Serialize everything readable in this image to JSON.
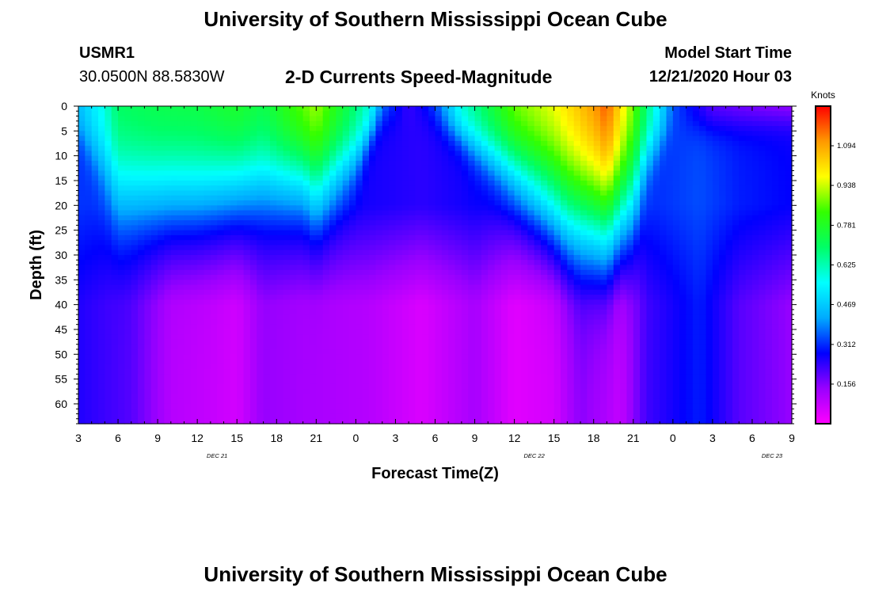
{
  "header": {
    "title": "University of Southern Mississippi Ocean Cube",
    "station_id": "USMR1",
    "station_coords": "30.0500N 88.5830W",
    "chart_title": "2-D Currents Speed-Magnitude",
    "model_start_label": "Model Start Time",
    "model_start_value": "12/21/2020 Hour 03"
  },
  "footer": {
    "title": "University of Southern Mississippi Ocean Cube"
  },
  "chart_data": {
    "type": "heatmap",
    "xlabel": "Forecast Time(Z)",
    "ylabel": "Depth (ft)",
    "x_tick_labels": [
      "3",
      "6",
      "9",
      "12",
      "15",
      "18",
      "21",
      "0",
      "3",
      "6",
      "9",
      "12",
      "15",
      "18",
      "21",
      "0",
      "3",
      "6",
      "9"
    ],
    "date_labels": [
      {
        "text": "DEC 21",
        "x_tick_index": 3.5
      },
      {
        "text": "DEC 22",
        "x_tick_index": 11.5
      },
      {
        "text": "DEC 23",
        "x_tick_index": 17.5
      }
    ],
    "y_tick_labels": [
      "0",
      "5",
      "10",
      "15",
      "20",
      "25",
      "30",
      "35",
      "40",
      "45",
      "50",
      "55",
      "60"
    ],
    "y_range_ft": [
      0,
      64
    ],
    "x_range_hours": [
      0,
      54
    ],
    "colorbar": {
      "unit": "Knots",
      "range": [
        0,
        1.25
      ],
      "tick_labels": [
        "1.094",
        "0.938",
        "0.781",
        "0.625",
        "0.469",
        "0.312",
        "0.156"
      ],
      "colors": [
        "#ff00ff",
        "#9900ff",
        "#0000ff",
        "#00aaff",
        "#00ffff",
        "#00ff66",
        "#33ff00",
        "#ffff00",
        "#ff9900",
        "#ff0000"
      ]
    },
    "surface_speed_knots": [
      {
        "hour": 0,
        "value": 0.45
      },
      {
        "hour": 2,
        "value": 0.6
      },
      {
        "hour": 3,
        "value": 0.72
      },
      {
        "hour": 6,
        "value": 0.75
      },
      {
        "hour": 9,
        "value": 0.76
      },
      {
        "hour": 12,
        "value": 0.8
      },
      {
        "hour": 14,
        "value": 0.75
      },
      {
        "hour": 18,
        "value": 0.94
      },
      {
        "hour": 21,
        "value": 0.7
      },
      {
        "hour": 22,
        "value": 0.6
      },
      {
        "hour": 23,
        "value": 0.4
      },
      {
        "hour": 25,
        "value": 0.22
      },
      {
        "hour": 27,
        "value": 0.35
      },
      {
        "hour": 29,
        "value": 0.6
      },
      {
        "hour": 31,
        "value": 0.75
      },
      {
        "hour": 33,
        "value": 0.9
      },
      {
        "hour": 36,
        "value": 1.0
      },
      {
        "hour": 39,
        "value": 1.15
      },
      {
        "hour": 40,
        "value": 1.22
      },
      {
        "hour": 42,
        "value": 0.9
      },
      {
        "hour": 43,
        "value": 0.7
      },
      {
        "hour": 45,
        "value": 0.35
      },
      {
        "hour": 48,
        "value": 0.18
      },
      {
        "hour": 54,
        "value": 0.1
      }
    ],
    "surface_layer_depth_ft": [
      {
        "hour": 0,
        "value": 5
      },
      {
        "hour": 2,
        "value": 12
      },
      {
        "hour": 3,
        "value": 16
      },
      {
        "hour": 9,
        "value": 16
      },
      {
        "hour": 14,
        "value": 14
      },
      {
        "hour": 17,
        "value": 14
      },
      {
        "hour": 18,
        "value": 16
      },
      {
        "hour": 21,
        "value": 10
      },
      {
        "hour": 22,
        "value": 6
      },
      {
        "hour": 23,
        "value": 2
      },
      {
        "hour": 26,
        "value": 1
      },
      {
        "hour": 29,
        "value": 6
      },
      {
        "hour": 32,
        "value": 11
      },
      {
        "hour": 35,
        "value": 16
      },
      {
        "hour": 37,
        "value": 20
      },
      {
        "hour": 40,
        "value": 22
      },
      {
        "hour": 42,
        "value": 17
      },
      {
        "hour": 43,
        "value": 10
      },
      {
        "hour": 45,
        "value": 4
      },
      {
        "hour": 54,
        "value": 2
      }
    ],
    "deep_speed_knots": [
      {
        "hour": 0,
        "value": 0.25
      },
      {
        "hour": 4,
        "value": 0.2
      },
      {
        "hour": 7,
        "value": 0.1
      },
      {
        "hour": 10,
        "value": 0.08
      },
      {
        "hour": 12,
        "value": 0.06
      },
      {
        "hour": 14,
        "value": 0.14
      },
      {
        "hour": 17,
        "value": 0.12
      },
      {
        "hour": 22,
        "value": 0.1
      },
      {
        "hour": 26,
        "value": 0.05
      },
      {
        "hour": 30,
        "value": 0.12
      },
      {
        "hour": 33,
        "value": 0.04
      },
      {
        "hour": 36,
        "value": 0.06
      },
      {
        "hour": 38,
        "value": 0.15
      },
      {
        "hour": 41,
        "value": 0.08
      },
      {
        "hour": 43,
        "value": 0.22
      },
      {
        "hour": 47,
        "value": 0.3
      },
      {
        "hour": 50,
        "value": 0.2
      },
      {
        "hour": 54,
        "value": 0.14
      }
    ]
  }
}
